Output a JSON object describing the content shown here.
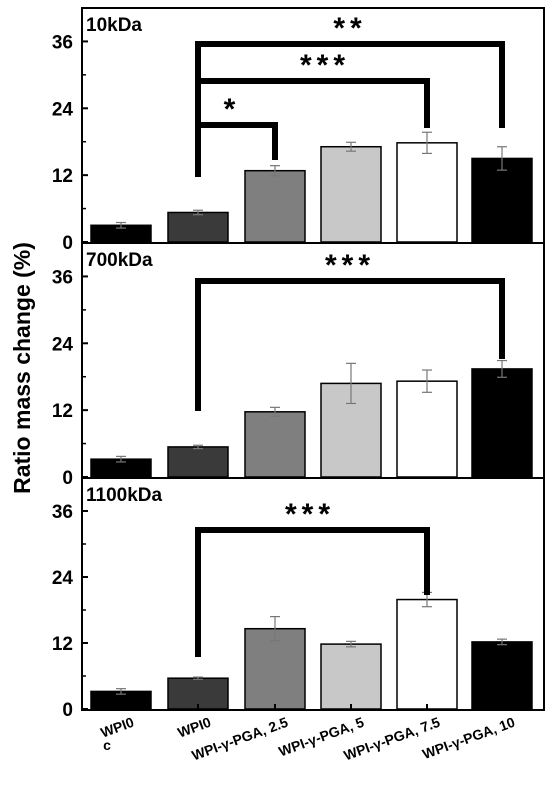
{
  "chart_data": {
    "type": "bar",
    "ylabel": "Ratio mass change (%)",
    "categories": [
      "WPI0\nc",
      "WPI0",
      "WPI-γ-PGA, 2.5",
      "WPI-γ-PGA, 5",
      "WPI-γ-PGA, 7.5",
      "WPI-γ-PGA, 10"
    ],
    "bar_colors": [
      "#000000",
      "#3a3a3a",
      "#7f7f7f",
      "#c8c8c8",
      "#ffffff",
      "#000000"
    ],
    "yticks": [
      0,
      12,
      24,
      36
    ],
    "ylim": [
      0,
      42
    ],
    "panels": [
      {
        "label": "10kDa",
        "values": [
          3,
          5.3,
          12.8,
          17.1,
          17.8,
          15
        ],
        "errors": [
          0.5,
          0.4,
          0.9,
          0.8,
          1.9,
          2.1
        ],
        "significance": [
          {
            "from": 1,
            "to": 2,
            "label": "*"
          },
          {
            "from": 1,
            "to": 4,
            "label": "***"
          },
          {
            "from": 1,
            "to": 5,
            "label": "**"
          }
        ]
      },
      {
        "label": "700kDa",
        "values": [
          3.2,
          5.4,
          11.7,
          16.8,
          17.2,
          19.4
        ],
        "errors": [
          0.5,
          0.3,
          0.8,
          3.6,
          2.0,
          1.5
        ],
        "significance": [
          {
            "from": 1,
            "to": 5,
            "label": "***"
          }
        ]
      },
      {
        "label": "1100kDa",
        "values": [
          3.2,
          5.6,
          14.6,
          11.8,
          19.9,
          12.2
        ],
        "errors": [
          0.5,
          0.2,
          2.2,
          0.5,
          1.3,
          0.5
        ],
        "significance": [
          {
            "from": 1,
            "to": 4,
            "label": "***"
          }
        ]
      }
    ]
  }
}
